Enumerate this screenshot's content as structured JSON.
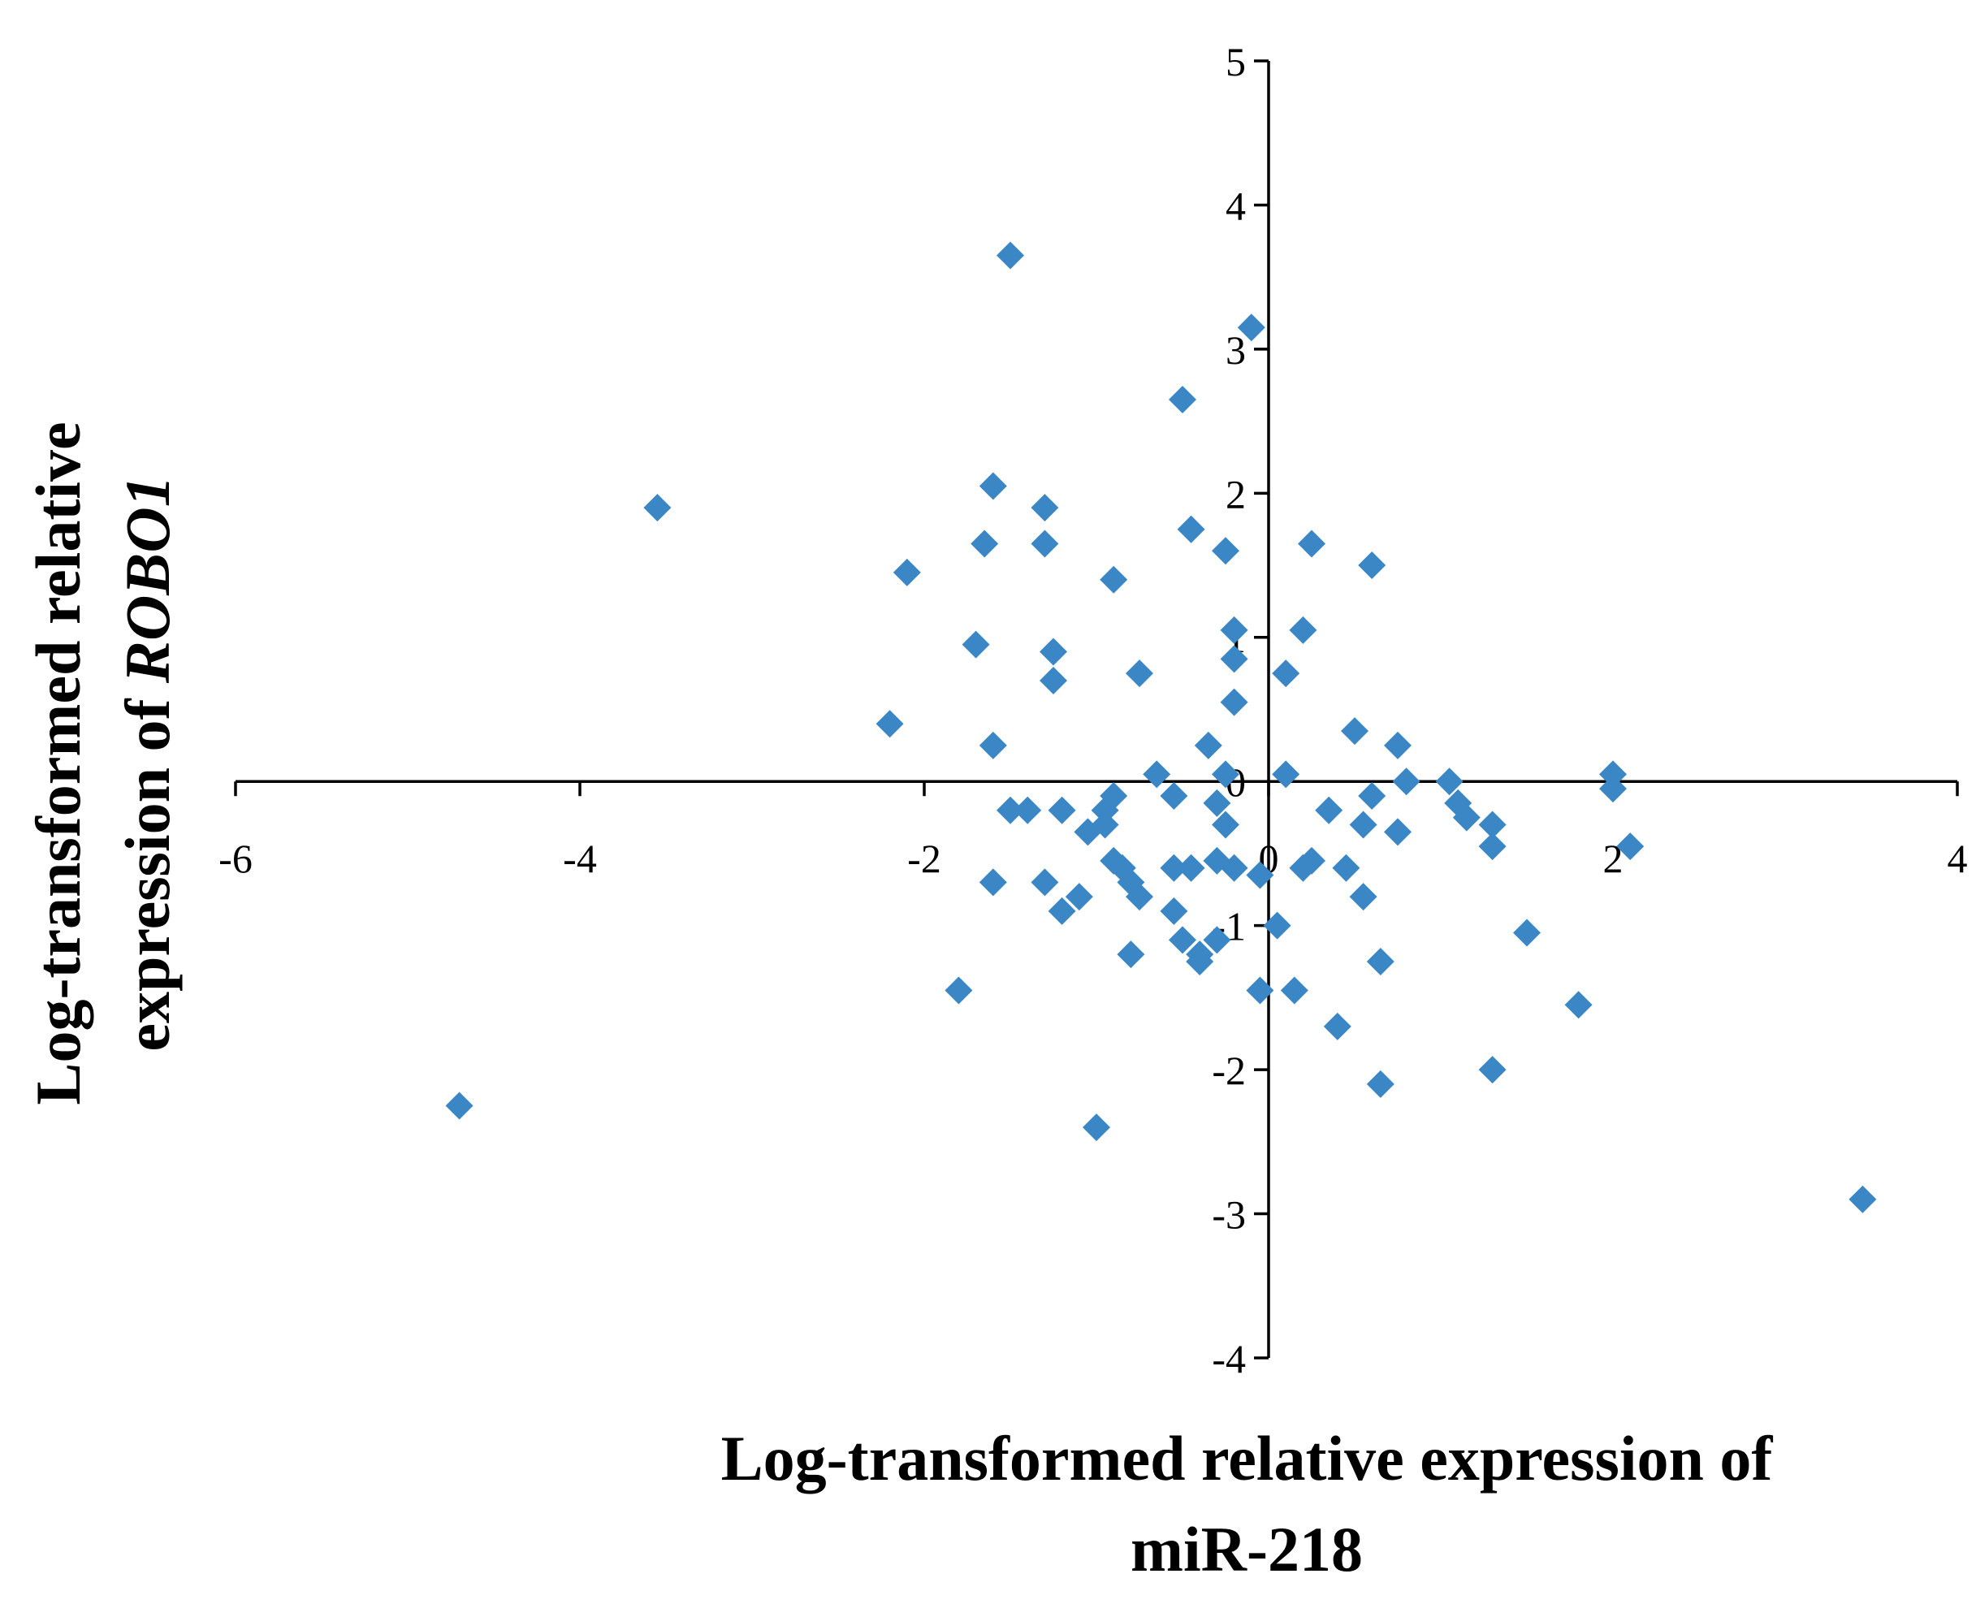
{
  "chart_data": {
    "type": "scatter",
    "title": "",
    "xlabel": "Log-transformed relative expression of miR-218",
    "ylabel_lines": [
      {
        "text": "Log-transformed relative"
      },
      {
        "text": "expression of ",
        "emphasis": "ROBO1"
      }
    ],
    "xlim": [
      -6,
      4
    ],
    "ylim": [
      -4,
      5
    ],
    "x_ticks": [
      -6,
      -4,
      -2,
      0,
      2,
      4
    ],
    "y_ticks": [
      -4,
      -3,
      -2,
      -1,
      0,
      1,
      2,
      3,
      4,
      5
    ],
    "x_tick_labels": [
      "-6",
      "-4",
      "-2",
      "0",
      "2",
      "4"
    ],
    "y_tick_labels": [
      "-4",
      "-3",
      "-2",
      "-1",
      "0",
      "1",
      "2",
      "3",
      "4",
      "5"
    ],
    "grid": false,
    "legend": "none",
    "marker": "diamond",
    "color": "#3b86c4",
    "points": [
      {
        "x": -1.5,
        "y": 3.65
      },
      {
        "x": -0.1,
        "y": 3.15
      },
      {
        "x": -0.5,
        "y": 2.65
      },
      {
        "x": -3.55,
        "y": 1.9
      },
      {
        "x": -1.6,
        "y": 2.05
      },
      {
        "x": -1.3,
        "y": 1.9
      },
      {
        "x": -2.1,
        "y": 1.45
      },
      {
        "x": -1.65,
        "y": 1.65
      },
      {
        "x": -1.3,
        "y": 1.65
      },
      {
        "x": -0.9,
        "y": 1.4
      },
      {
        "x": -0.45,
        "y": 1.75
      },
      {
        "x": -0.25,
        "y": 1.6
      },
      {
        "x": 0.25,
        "y": 1.65
      },
      {
        "x": 0.6,
        "y": 1.5
      },
      {
        "x": -1.7,
        "y": 0.95
      },
      {
        "x": -1.25,
        "y": 0.9
      },
      {
        "x": -1.25,
        "y": 0.7
      },
      {
        "x": -0.75,
        "y": 0.75
      },
      {
        "x": -0.2,
        "y": 1.05
      },
      {
        "x": -0.2,
        "y": 0.85
      },
      {
        "x": 0.2,
        "y": 1.05
      },
      {
        "x": 0.1,
        "y": 0.75
      },
      {
        "x": -0.2,
        "y": 0.55
      },
      {
        "x": -2.2,
        "y": 0.4
      },
      {
        "x": -1.6,
        "y": 0.25
      },
      {
        "x": -0.35,
        "y": 0.25
      },
      {
        "x": 0.5,
        "y": 0.35
      },
      {
        "x": 0.75,
        "y": 0.25
      },
      {
        "x": -0.65,
        "y": 0.05
      },
      {
        "x": -0.25,
        "y": 0.05
      },
      {
        "x": 0.1,
        "y": 0.05
      },
      {
        "x": 0.8,
        "y": 0.0
      },
      {
        "x": 1.05,
        "y": 0.0
      },
      {
        "x": 2.0,
        "y": 0.05
      },
      {
        "x": 2.0,
        "y": -0.05
      },
      {
        "x": -0.55,
        "y": -0.1
      },
      {
        "x": -0.3,
        "y": -0.15
      },
      {
        "x": -1.4,
        "y": -0.2
      },
      {
        "x": -1.5,
        "y": -0.2
      },
      {
        "x": -1.2,
        "y": -0.2
      },
      {
        "x": -0.9,
        "y": -0.1
      },
      {
        "x": -0.95,
        "y": -0.2
      },
      {
        "x": 0.35,
        "y": -0.2
      },
      {
        "x": 0.6,
        "y": -0.1
      },
      {
        "x": 1.1,
        "y": -0.15
      },
      {
        "x": 1.15,
        "y": -0.25
      },
      {
        "x": 1.3,
        "y": -0.3
      },
      {
        "x": -1.05,
        "y": -0.35
      },
      {
        "x": -0.95,
        "y": -0.3
      },
      {
        "x": -0.25,
        "y": -0.3
      },
      {
        "x": 0.55,
        "y": -0.3
      },
      {
        "x": 0.75,
        "y": -0.35
      },
      {
        "x": 1.3,
        "y": -0.45
      },
      {
        "x": 2.1,
        "y": -0.45
      },
      {
        "x": -0.9,
        "y": -0.55
      },
      {
        "x": -0.85,
        "y": -0.6
      },
      {
        "x": -0.55,
        "y": -0.6
      },
      {
        "x": -0.45,
        "y": -0.6
      },
      {
        "x": -0.3,
        "y": -0.55
      },
      {
        "x": -0.2,
        "y": -0.6
      },
      {
        "x": -0.05,
        "y": -0.65
      },
      {
        "x": 0.2,
        "y": -0.6
      },
      {
        "x": 0.25,
        "y": -0.55
      },
      {
        "x": 0.45,
        "y": -0.6
      },
      {
        "x": -1.6,
        "y": -0.7
      },
      {
        "x": -1.3,
        "y": -0.7
      },
      {
        "x": -1.1,
        "y": -0.8
      },
      {
        "x": -0.8,
        "y": -0.7
      },
      {
        "x": -0.75,
        "y": -0.8
      },
      {
        "x": -0.55,
        "y": -0.9
      },
      {
        "x": 0.55,
        "y": -0.8
      },
      {
        "x": -1.2,
        "y": -0.9
      },
      {
        "x": -0.5,
        "y": -1.1
      },
      {
        "x": -0.3,
        "y": -1.1
      },
      {
        "x": -0.4,
        "y": -1.2
      },
      {
        "x": -0.4,
        "y": -1.25
      },
      {
        "x": 0.05,
        "y": -1.0
      },
      {
        "x": 1.5,
        "y": -1.05
      },
      {
        "x": -0.8,
        "y": -1.2
      },
      {
        "x": 0.65,
        "y": -1.25
      },
      {
        "x": -1.8,
        "y": -1.45
      },
      {
        "x": -0.05,
        "y": -1.45
      },
      {
        "x": 0.15,
        "y": -1.45
      },
      {
        "x": 1.8,
        "y": -1.55
      },
      {
        "x": 0.4,
        "y": -1.7
      },
      {
        "x": 0.65,
        "y": -2.1
      },
      {
        "x": 1.3,
        "y": -2.0
      },
      {
        "x": -4.7,
        "y": -2.25
      },
      {
        "x": -1.0,
        "y": -2.4
      },
      {
        "x": 3.45,
        "y": -2.9
      }
    ]
  }
}
